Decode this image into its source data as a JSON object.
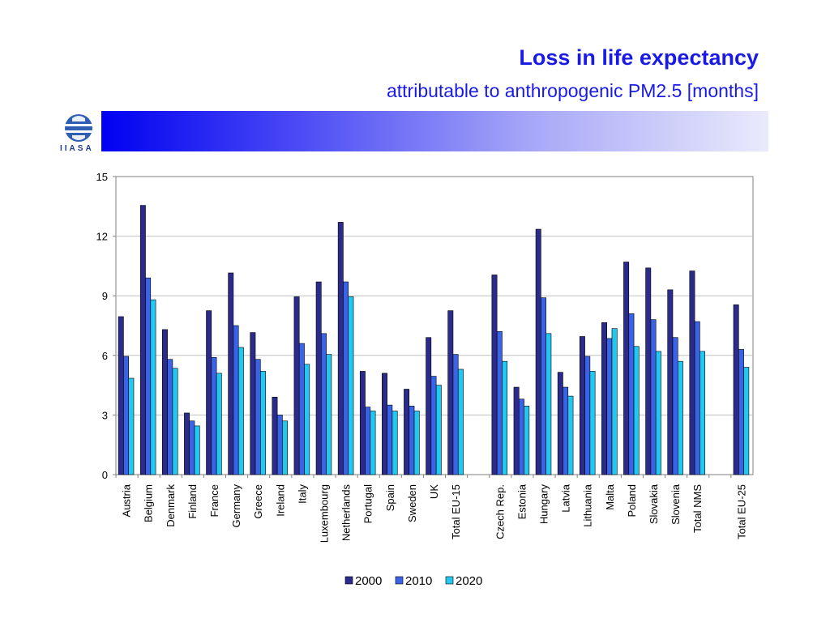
{
  "header": {
    "title": "Loss in life expectancy",
    "subtitle": "attributable to anthropogenic PM2.5 [months]",
    "logo_text": "IIASA"
  },
  "colors": {
    "title": "#1a1ae6",
    "series_2000": "#2b2b8c",
    "series_2010": "#3a63e8",
    "series_2020": "#22c8f0"
  },
  "chart_data": {
    "type": "bar",
    "title": "",
    "xlabel": "",
    "ylabel": "",
    "ylim": [
      0,
      15
    ],
    "yticks": [
      0,
      3,
      6,
      9,
      12,
      15
    ],
    "grid": true,
    "legend_position": "bottom",
    "categories": [
      "Austria",
      "Belgium",
      "Denmark",
      "Finland",
      "France",
      "Germany",
      "Greece",
      "Ireland",
      "Italy",
      "Luxembourg",
      "Netherlands",
      "Portugal",
      "Spain",
      "Sweden",
      "UK",
      "Total EU-15",
      "",
      "Czech Rep.",
      "Estonia",
      "Hungary",
      "Latvia",
      "Lithuania",
      "Malta",
      "Poland",
      "Slovakia",
      "Slovenia",
      "Total NMS",
      "",
      "Total EU-25"
    ],
    "series": [
      {
        "name": "2000",
        "color": "#2b2b8c",
        "values": [
          7.95,
          13.55,
          7.3,
          3.1,
          8.25,
          10.15,
          7.15,
          3.9,
          8.95,
          9.7,
          12.7,
          5.2,
          5.1,
          4.3,
          6.9,
          8.25,
          null,
          10.05,
          4.4,
          12.35,
          5.15,
          6.95,
          7.65,
          10.7,
          10.4,
          9.3,
          10.25,
          null,
          8.55
        ]
      },
      {
        "name": "2010",
        "color": "#3a63e8",
        "values": [
          5.95,
          9.9,
          5.8,
          2.7,
          5.9,
          7.5,
          5.8,
          3.0,
          6.6,
          7.1,
          9.7,
          3.4,
          3.5,
          3.45,
          4.95,
          6.05,
          null,
          7.2,
          3.8,
          8.9,
          4.4,
          5.95,
          6.85,
          8.1,
          7.8,
          6.9,
          7.7,
          null,
          6.3
        ]
      },
      {
        "name": "2020",
        "color": "#22c8f0",
        "values": [
          4.85,
          8.8,
          5.35,
          2.45,
          5.1,
          6.4,
          5.2,
          2.7,
          5.55,
          6.05,
          8.95,
          3.2,
          3.2,
          3.2,
          4.5,
          5.3,
          null,
          5.7,
          3.45,
          7.1,
          3.95,
          5.2,
          7.35,
          6.45,
          6.2,
          5.7,
          6.2,
          null,
          5.4
        ]
      }
    ]
  }
}
